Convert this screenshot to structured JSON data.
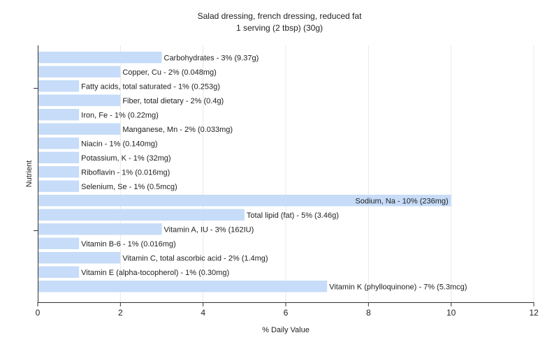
{
  "chart_data": {
    "type": "bar",
    "orientation": "horizontal",
    "title": "Salad dressing, french dressing, reduced fat",
    "subtitle": "1 serving (2 tbsp) (30g)",
    "xlabel": "% Daily Value",
    "ylabel": "Nutrient",
    "xlim": [
      0,
      12
    ],
    "xticks": [
      0,
      2,
      4,
      6,
      8,
      10,
      12
    ],
    "grid": true,
    "bar_color": "#c6dcf8",
    "categories": [
      "Carbohydrates - 3% (9.37g)",
      "Copper, Cu - 2% (0.048mg)",
      "Fatty acids, total saturated - 1% (0.253g)",
      "Fiber, total dietary - 2% (0.4g)",
      "Iron, Fe - 1% (0.22mg)",
      "Manganese, Mn - 2% (0.033mg)",
      "Niacin - 1% (0.140mg)",
      "Potassium, K - 1% (32mg)",
      "Riboflavin - 1% (0.016mg)",
      "Selenium, Se - 1% (0.5mcg)",
      "Sodium, Na - 10% (236mg)",
      "Total lipid (fat) - 5% (3.46g)",
      "Vitamin A, IU - 3% (162IU)",
      "Vitamin B-6 - 1% (0.016mg)",
      "Vitamin C, total ascorbic acid - 2% (1.4mg)",
      "Vitamin E (alpha-tocopherol) - 1% (0.30mg)",
      "Vitamin K (phylloquinone) - 7% (5.3mcg)"
    ],
    "values": [
      3,
      2,
      1,
      2,
      1,
      2,
      1,
      1,
      1,
      1,
      10,
      5,
      3,
      1,
      2,
      1,
      7
    ]
  }
}
